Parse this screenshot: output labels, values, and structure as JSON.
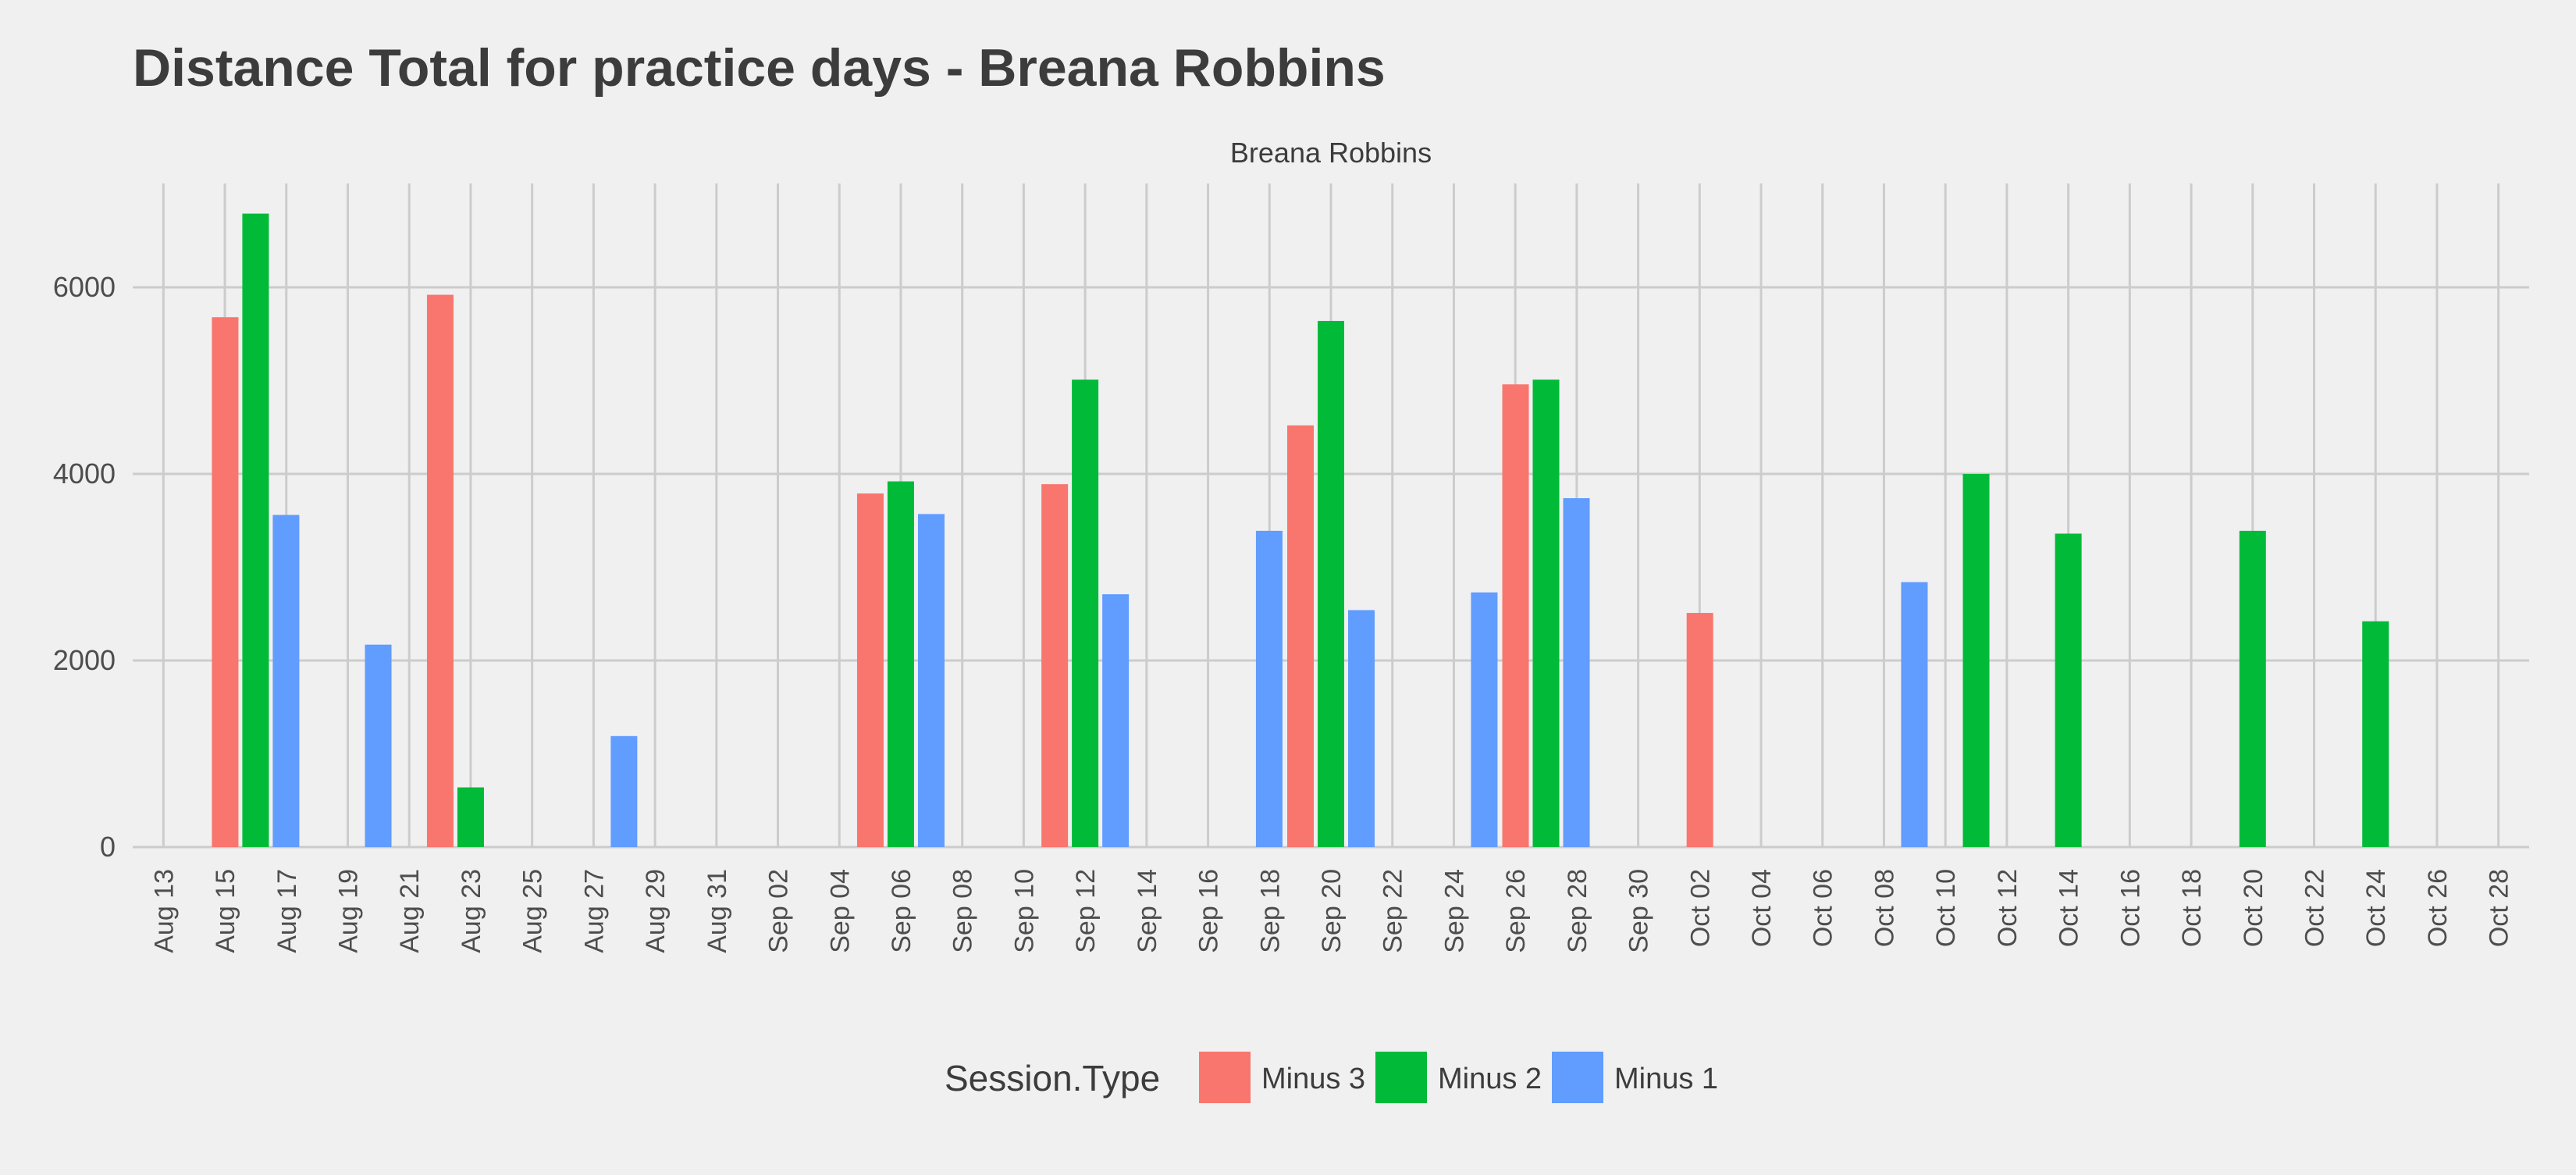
{
  "chart_data": {
    "type": "bar",
    "title": "Distance Total for practice days -  Breana Robbins",
    "facet_label": "Breana Robbins",
    "xlabel": "",
    "ylabel": "",
    "ylim": [
      0,
      7000
    ],
    "y_ticks": [
      0,
      2000,
      4000,
      6000
    ],
    "x_tick_labels": [
      "Aug 13",
      "Aug 15",
      "Aug 17",
      "Aug 19",
      "Aug 21",
      "Aug 23",
      "Aug 25",
      "Aug 27",
      "Aug 29",
      "Aug 31",
      "Sep 02",
      "Sep 04",
      "Sep 06",
      "Sep 08",
      "Sep 10",
      "Sep 12",
      "Sep 14",
      "Sep 16",
      "Sep 18",
      "Sep 20",
      "Sep 22",
      "Sep 24",
      "Sep 26",
      "Sep 28",
      "Sep 30",
      "Oct 02",
      "Oct 04",
      "Oct 06",
      "Oct 08",
      "Oct 10",
      "Oct 12",
      "Oct 14",
      "Oct 16",
      "Oct 18",
      "Oct 20",
      "Oct 22",
      "Oct 24",
      "Oct 26",
      "Oct 28"
    ],
    "x_range": [
      "2018-08-12",
      "2018-10-29"
    ],
    "grid": true,
    "legend": {
      "title": "Session.Type",
      "position": "bottom",
      "entries": [
        "Minus 3",
        "Minus 2",
        "Minus 1"
      ]
    },
    "series": [
      {
        "name": "Minus 3",
        "color": "#F8766D",
        "points": [
          {
            "date": "2018-08-16",
            "value": 5680
          },
          {
            "date": "2018-08-23",
            "value": 5920
          },
          {
            "date": "2018-09-06",
            "value": 3790
          },
          {
            "date": "2018-09-12",
            "value": 3890
          },
          {
            "date": "2018-09-20",
            "value": 4520
          },
          {
            "date": "2018-09-27",
            "value": 4960
          },
          {
            "date": "2018-10-03",
            "value": 2510
          }
        ]
      },
      {
        "name": "Minus 2",
        "color": "#00BA38",
        "points": [
          {
            "date": "2018-08-16",
            "value": 6790
          },
          {
            "date": "2018-08-23",
            "value": 640
          },
          {
            "date": "2018-09-06",
            "value": 3920
          },
          {
            "date": "2018-09-12",
            "value": 5010
          },
          {
            "date": "2018-09-20",
            "value": 5640
          },
          {
            "date": "2018-09-27",
            "value": 5010
          },
          {
            "date": "2018-10-11",
            "value": 4000
          },
          {
            "date": "2018-10-14",
            "value": 3360
          },
          {
            "date": "2018-10-20",
            "value": 3390
          },
          {
            "date": "2018-10-24",
            "value": 2420
          }
        ]
      },
      {
        "name": "Minus 1",
        "color": "#619CFF",
        "points": [
          {
            "date": "2018-08-16",
            "value": 3560
          },
          {
            "date": "2018-08-19",
            "value": 2170
          },
          {
            "date": "2018-08-27",
            "value": 1190
          },
          {
            "date": "2018-09-06",
            "value": 3570
          },
          {
            "date": "2018-09-12",
            "value": 2710
          },
          {
            "date": "2018-09-17",
            "value": 3390
          },
          {
            "date": "2018-09-20",
            "value": 2540
          },
          {
            "date": "2018-09-24",
            "value": 2730
          },
          {
            "date": "2018-09-27",
            "value": 3740
          },
          {
            "date": "2018-10-08",
            "value": 2840
          }
        ]
      }
    ]
  }
}
